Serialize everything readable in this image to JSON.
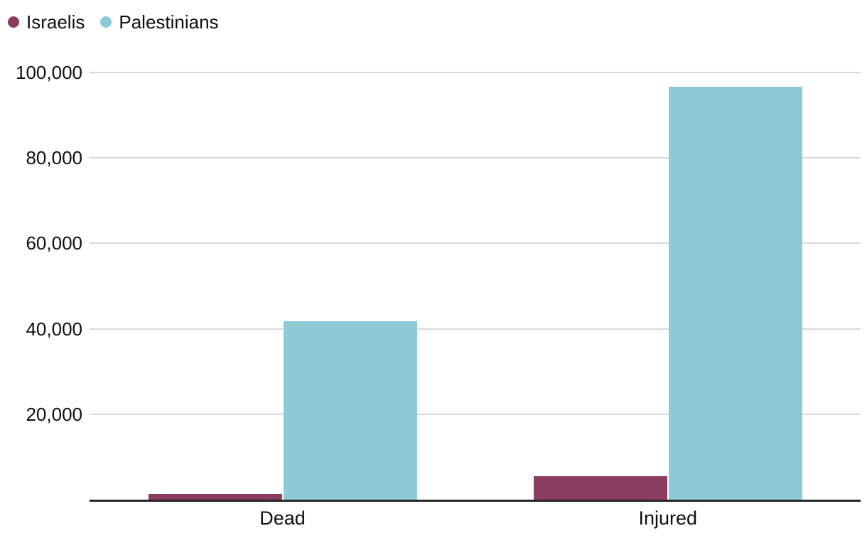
{
  "legend": {
    "items": [
      {
        "label": "Israelis",
        "color": "#8b3d61"
      },
      {
        "label": "Palestinians",
        "color": "#8ccad5"
      }
    ]
  },
  "chart_data": {
    "type": "bar",
    "categories": [
      "Dead",
      "Injured"
    ],
    "series": [
      {
        "name": "Israelis",
        "color": "#8b3d61",
        "values": [
          1300,
          5500
        ]
      },
      {
        "name": "Palestinians",
        "color": "#8ccad5",
        "values": [
          41700,
          96600
        ]
      }
    ],
    "title": "",
    "xlabel": "",
    "ylabel": "",
    "ylim": [
      0,
      100000
    ],
    "yticks": [
      20000,
      40000,
      60000,
      80000,
      100000
    ],
    "ytick_labels": [
      "20,000",
      "40,000",
      "60,000",
      "80,000",
      "100,000"
    ],
    "grid": "horizontal",
    "legend_position": "top-left",
    "colors": {
      "gridline": "#d9d9d9",
      "axis": "#262626",
      "text": "#0f0f0f",
      "background": "#ffffff"
    }
  }
}
